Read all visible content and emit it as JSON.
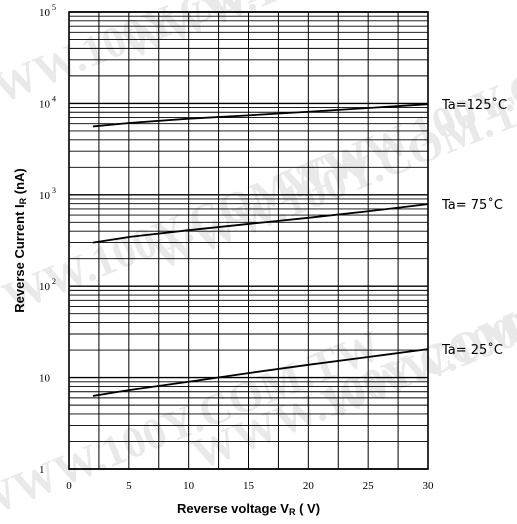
{
  "chart_data": {
    "type": "line",
    "xlabel": "Reverse voltage V",
    "xlabel_sub": "R",
    "xlabel_tail": " ( V)",
    "ylabel": "Reverse Current I",
    "ylabel_sub": "R",
    "ylabel_tail": " (nA)",
    "x_ticks": [
      0,
      5,
      10,
      15,
      20,
      25,
      30
    ],
    "y_ticks": [
      {
        "value": 1,
        "base": "1",
        "exp": ""
      },
      {
        "value": 10,
        "base": "10",
        "exp": ""
      },
      {
        "value": 100,
        "base": "10",
        "exp": "2"
      },
      {
        "value": 1000,
        "base": "10",
        "exp": "3"
      },
      {
        "value": 10000,
        "base": "10",
        "exp": "4"
      },
      {
        "value": 100000,
        "base": "10",
        "exp": "5"
      }
    ],
    "xlim": [
      0,
      30
    ],
    "ylim": [
      1,
      100000
    ],
    "y_scale": "log",
    "grid": true,
    "series": [
      {
        "name": "Ta=125˚C",
        "x": [
          2,
          5,
          10,
          15,
          20,
          25,
          30
        ],
        "y": [
          5600,
          6100,
          6800,
          7400,
          8100,
          8900,
          9800
        ]
      },
      {
        "name": "Ta=  75˚C",
        "x": [
          2,
          5,
          10,
          15,
          20,
          25,
          30
        ],
        "y": [
          300,
          345,
          410,
          480,
          560,
          660,
          790
        ]
      },
      {
        "name": "Ta=  25˚C",
        "x": [
          2,
          5,
          10,
          15,
          20,
          25,
          30
        ],
        "y": [
          6.3,
          7.3,
          9.0,
          11.2,
          13.8,
          16.8,
          20.5
        ]
      }
    ],
    "watermark": "WWW.100Y.COM.TW"
  }
}
